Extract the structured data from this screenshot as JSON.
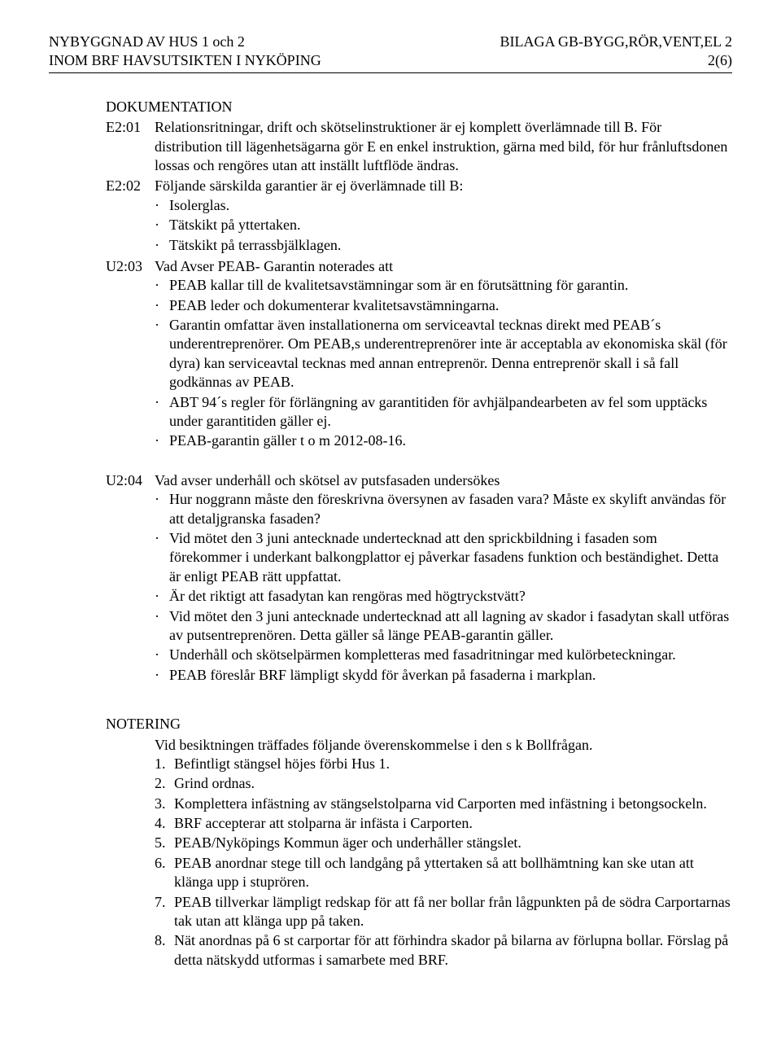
{
  "header": {
    "left1": "NYBYGGNAD AV HUS 1 och 2",
    "left2": "INOM BRF HAVSUTSIKTEN I NYKÖPING",
    "right1": "BILAGA GB-BYGG,RÖR,VENT,EL 2",
    "right2": "2(6)"
  },
  "dokumentation": {
    "title": "DOKUMENTATION",
    "e201": {
      "code": "E2:01",
      "text": "Relationsritningar, drift och skötselinstruktioner är ej komplett överlämnade till B. För distribution till lägenhetsägarna gör E en enkel instruktion, gärna med bild, för hur frånluftsdonen lossas och rengöres utan att inställt luftflöde ändras."
    },
    "e202": {
      "code": "E2:02",
      "intro": "Följande särskilda garantier är ej överlämnade till B:",
      "bullets": [
        "Isolerglas.",
        "Tätskikt på yttertaken.",
        "Tätskikt på terrassbjälklagen."
      ]
    },
    "u203": {
      "code": "U2:03",
      "intro": "Vad Avser PEAB- Garantin noterades att",
      "bullets": [
        "PEAB kallar till de kvalitetsavstämningar som är en förutsättning för garantin.",
        "PEAB leder och dokumenterar kvalitetsavstämningarna.",
        "Garantin omfattar även installationerna om serviceavtal tecknas direkt med PEAB´s  underentreprenörer. Om PEAB,s underentreprenörer inte är acceptabla av ekonomiska skäl (för dyra) kan serviceavtal tecknas med annan entreprenör. Denna entreprenör skall i så fall godkännas av PEAB.",
        "ABT 94´s regler för förlängning av garantitiden för avhjälpandearbeten  av fel som upptäcks under garantitiden gäller ej.",
        "PEAB-garantin gäller t o m 2012-08-16."
      ]
    },
    "u204": {
      "code": "U2:04",
      "intro": "Vad avser underhåll och skötsel av putsfasaden undersökes",
      "bullets": [
        "Hur noggrann måste den föreskrivna översynen av fasaden vara? Måste ex skylift användas för att detaljgranska fasaden?",
        "Vid mötet den 3 juni antecknade undertecknad att den sprickbildning i fasaden som förekommer i underkant balkongplattor ej påverkar fasadens funktion och beständighet. Detta är enligt PEAB rätt uppfattat.",
        "Är det riktigt att fasadytan kan rengöras med högtryckstvätt?",
        "Vid mötet den 3 juni antecknade undertecknad att all lagning av skador i fasadytan skall utföras av putsentreprenören. Detta gäller så länge PEAB-garantin gäller.",
        "Underhåll och skötselpärmen kompletteras med fasadritningar med kulörbeteckningar.",
        "PEAB föreslår BRF lämpligt skydd för åverkan på fasaderna i markplan."
      ]
    }
  },
  "notering": {
    "title": "NOTERING",
    "intro": "Vid besiktningen träffades följande överenskommelse i den s k Bollfrågan.",
    "items": [
      "Befintligt stängsel höjes förbi Hus 1.",
      "Grind ordnas.",
      "Komplettera infästning av stängselstolparna vid Carporten med infästning i betongsockeln.",
      "BRF accepterar att stolparna är infästa i Carporten.",
      "PEAB/Nyköpings Kommun äger och underhåller stängslet.",
      "PEAB anordnar stege till och landgång på yttertaken så att bollhämtning kan ske utan att klänga upp i stuprören.",
      "PEAB tillverkar lämpligt redskap för att få ner bollar från lågpunkten på  de södra Carportarnas tak utan att klänga upp på taken.",
      "Nät anordnas på 6 st carportar för att förhindra skador på bilarna av förlupna bollar. Förslag på detta nätskydd utformas i samarbete med BRF."
    ]
  },
  "bullet_char": "·"
}
